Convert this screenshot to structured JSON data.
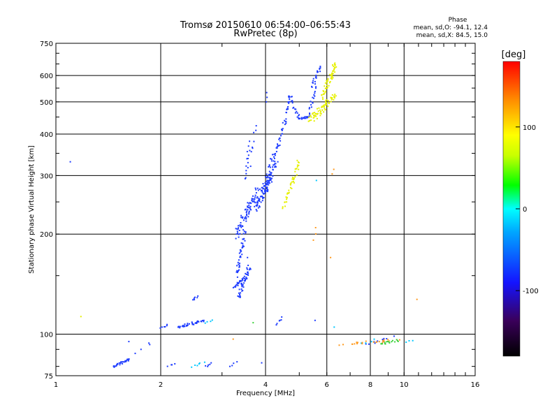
{
  "chart_data": {
    "type": "scatter",
    "title": "Tromsø 20150610 06:54:00–06:55:43",
    "subtitle": "RwPretec (8p)",
    "xlabel": "Frequency [MHz]",
    "ylabel": "Stationary phase Virtual Height [km]",
    "x_scale": "log2",
    "y_scale": "log",
    "xlim": [
      1,
      16
    ],
    "ylim": [
      75,
      750
    ],
    "x_ticks": [
      "1",
      "2",
      "4",
      "6",
      "8",
      "10",
      "16"
    ],
    "y_ticks": [
      "75",
      "100",
      "200",
      "300",
      "400",
      "500",
      "600",
      "750"
    ],
    "grid": true,
    "phase_info": {
      "title": "Phase",
      "line_o": "mean, sd,O: -94.1, 12.4",
      "line_x": "mean, sd,X:  84.5, 15.0"
    },
    "colorbar": {
      "label": "[deg]",
      "ticks": [
        "100",
        "0",
        "-100"
      ],
      "range": [
        -180,
        180
      ],
      "colors": [
        "#000000",
        "#3a005a",
        "#1414ff",
        "#00a5ff",
        "#00ffff",
        "#00ff00",
        "#c8ff00",
        "#ffff00",
        "#ff8c00",
        "#ff0000"
      ]
    },
    "series": [
      {
        "color": "#1e3cff",
        "segments": [
          {
            "x": [
              1.46,
              1.62
            ],
            "y": [
              80,
              84
            ],
            "n": 28
          },
          {
            "x": [
              1.62,
              1.85
            ],
            "y": [
              84,
              92
            ],
            "n": 4
          },
          {
            "x": [
              2.0,
              2.1
            ],
            "y": [
              104,
              107
            ],
            "n": 6
          },
          {
            "x": [
              2.25,
              2.65
            ],
            "y": [
              105,
              110
            ],
            "n": 40
          },
          {
            "x": [
              2.48,
              2.55
            ],
            "y": [
              126,
              130
            ],
            "n": 6
          },
          {
            "x": [
              2.1,
              2.2
            ],
            "y": [
              80,
              82
            ],
            "n": 4
          },
          {
            "x": [
              2.7,
              2.8
            ],
            "y": [
              80,
              82
            ],
            "n": 5
          },
          {
            "x": [
              3.15,
              3.3
            ],
            "y": [
              80,
              82
            ],
            "n": 4
          },
          {
            "x": [
              3.25,
              3.45
            ],
            "y": [
              138,
              148
            ],
            "n": 20
          },
          {
            "x": [
              3.35,
              3.6
            ],
            "y": [
              130,
              160
            ],
            "n": 45
          },
          {
            "x": [
              3.3,
              3.5
            ],
            "y": [
              150,
              200
            ],
            "n": 40
          },
          {
            "x": [
              3.3,
              3.8
            ],
            "y": [
              200,
              270
            ],
            "n": 80
          },
          {
            "x": [
              3.5,
              3.6
            ],
            "y": [
              290,
              380
            ],
            "n": 14
          },
          {
            "x": [
              3.6,
              3.75
            ],
            "y": [
              330,
              430
            ],
            "n": 8
          },
          {
            "x": [
              3.75,
              4.2
            ],
            "y": [
              240,
              300
            ],
            "n": 70
          },
          {
            "x": [
              3.9,
              4.3
            ],
            "y": [
              270,
              330
            ],
            "n": 40
          },
          {
            "x": [
              4.1,
              4.4
            ],
            "y": [
              320,
              380
            ],
            "n": 22
          },
          {
            "x": [
              4.4,
              4.55
            ],
            "y": [
              380,
              440
            ],
            "n": 14
          },
          {
            "x": [
              4.55,
              4.7
            ],
            "y": [
              440,
              530
            ],
            "n": 18
          },
          {
            "x": [
              4.7,
              5.0
            ],
            "y": [
              520,
              445
            ],
            "n": 18
          },
          {
            "x": [
              5.0,
              5.3
            ],
            "y": [
              445,
              450
            ],
            "n": 16
          },
          {
            "x": [
              5.3,
              5.6
            ],
            "y": [
              450,
              560
            ],
            "n": 20
          },
          {
            "x": [
              5.45,
              5.75
            ],
            "y": [
              560,
              640
            ],
            "n": 20
          },
          {
            "x": [
              4.0,
              4.05
            ],
            "y": [
              500,
              530
            ],
            "n": 3
          },
          {
            "x": [
              4.3,
              4.45
            ],
            "y": [
              107,
              112
            ],
            "n": 6
          },
          {
            "x": [
              7.8,
              9.2
            ],
            "y": [
              93,
              98
            ],
            "n": 10
          }
        ]
      },
      {
        "color": "#00c8ff",
        "segments": [
          {
            "x": [
              2.45,
              2.65
            ],
            "y": [
              80,
              82
            ],
            "n": 6
          },
          {
            "x": [
              2.7,
              2.8
            ],
            "y": [
              108,
              110
            ],
            "n": 4
          },
          {
            "x": [
              7.6,
              8.2
            ],
            "y": [
              94,
              96
            ],
            "n": 4
          },
          {
            "x": [
              10.2,
              10.6
            ],
            "y": [
              94,
              96
            ],
            "n": 3
          }
        ]
      },
      {
        "color": "#e6f000",
        "segments": [
          {
            "x": [
              4.5,
              4.65
            ],
            "y": [
              240,
              265
            ],
            "n": 12
          },
          {
            "x": [
              4.65,
              5.0
            ],
            "y": [
              265,
              330
            ],
            "n": 30
          },
          {
            "x": [
              5.4,
              6.3
            ],
            "y": [
              440,
              520
            ],
            "n": 70
          },
          {
            "x": [
              5.8,
              6.35
            ],
            "y": [
              520,
              640
            ],
            "n": 50
          },
          {
            "x": [
              6.2,
              6.35
            ],
            "y": [
              600,
              650
            ],
            "n": 10
          }
        ]
      },
      {
        "color": "#ff9a1e",
        "segments": [
          {
            "x": [
              6.7,
              9.5
            ],
            "y": [
              93,
              96
            ],
            "n": 22
          },
          {
            "x": [
              5.5,
              5.6
            ],
            "y": [
              190,
              210
            ],
            "n": 3
          },
          {
            "x": [
              6.25,
              6.3
            ],
            "y": [
              305,
              312
            ],
            "n": 2
          },
          {
            "x": [
              10.8,
              10.9
            ],
            "y": [
              126,
              128
            ],
            "n": 1
          },
          {
            "x": [
              3.2,
              3.3
            ],
            "y": [
              96,
              98
            ],
            "n": 1
          }
        ]
      },
      {
        "color": "#3cd23c",
        "segments": [
          {
            "x": [
              8.5,
              9.6
            ],
            "y": [
              93,
              96
            ],
            "n": 16
          },
          {
            "x": [
              3.65,
              3.7
            ],
            "y": [
              108,
              110
            ],
            "n": 1
          }
        ]
      }
    ],
    "points": [
      {
        "x": 1.1,
        "y": 330,
        "color": "#1e3cff"
      },
      {
        "x": 1.18,
        "y": 113,
        "color": "#e6f000"
      },
      {
        "x": 1.62,
        "y": 95,
        "color": "#1e3cff"
      },
      {
        "x": 1.85,
        "y": 94,
        "color": "#1e3cff"
      },
      {
        "x": 5.55,
        "y": 110,
        "color": "#1e3cff"
      },
      {
        "x": 5.6,
        "y": 290,
        "color": "#00c8ff"
      },
      {
        "x": 6.3,
        "y": 105,
        "color": "#00c8ff"
      },
      {
        "x": 6.15,
        "y": 170,
        "color": "#ff9a1e"
      },
      {
        "x": 3.55,
        "y": 170,
        "color": "#1e3cff"
      },
      {
        "x": 3.9,
        "y": 82,
        "color": "#1e3cff"
      }
    ]
  }
}
